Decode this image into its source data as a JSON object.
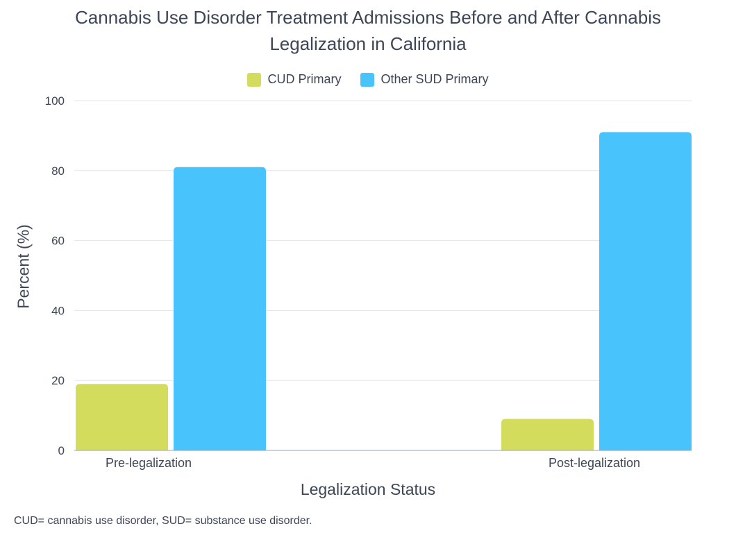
{
  "chart_data": {
    "type": "bar",
    "title_lines": [
      "Cannabis Use Disorder Treatment Admissions Before and After Cannabis",
      "Legalization in California"
    ],
    "xlabel": "Legalization Status",
    "ylabel": "Percent (%)",
    "categories": [
      "Pre-legalization",
      "Post-legalization"
    ],
    "series": [
      {
        "name": "CUD Primary",
        "values": [
          19,
          9
        ],
        "color": "#d3dc5c"
      },
      {
        "name": "Other SUD Primary",
        "values": [
          81,
          91
        ],
        "color": "#48c3fb"
      }
    ],
    "ylim": [
      0,
      100
    ],
    "yticks": [
      "0",
      "20",
      "40",
      "60",
      "80",
      "100"
    ],
    "grid": true,
    "legend_position": "top-center"
  },
  "footnote": "CUD= cannabis use disorder, SUD= substance use disorder."
}
